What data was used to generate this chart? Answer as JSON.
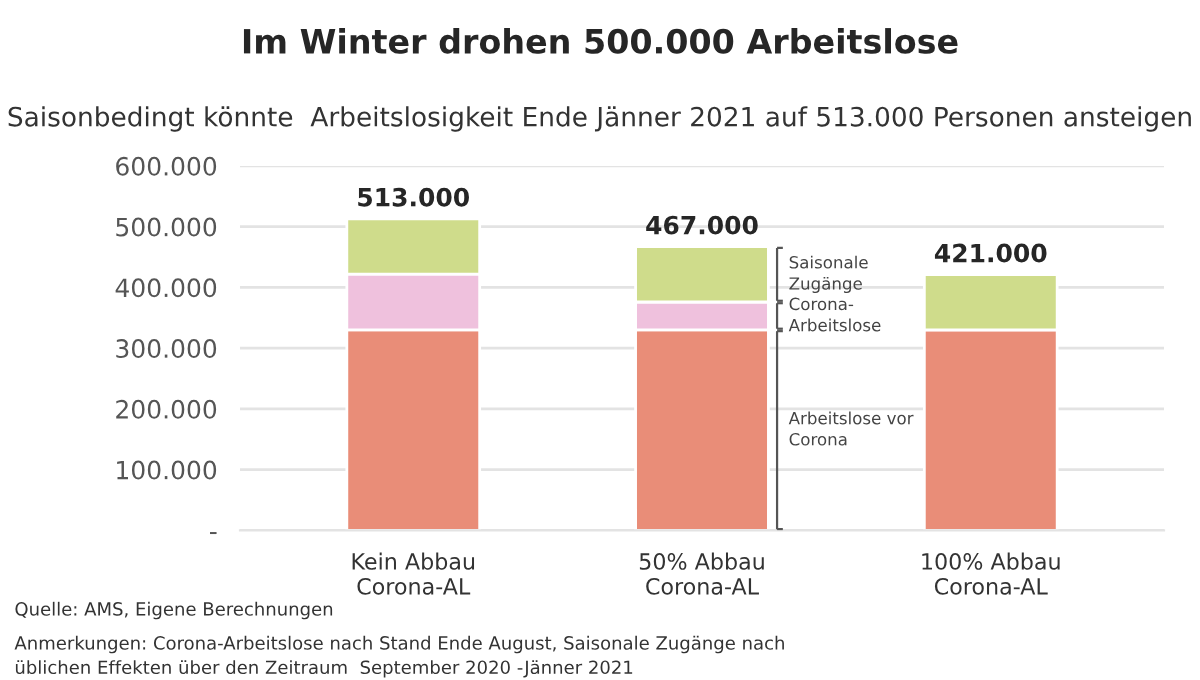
{
  "chart_data": {
    "type": "bar",
    "stacked": true,
    "title": "Im Winter drohen 500.000 Arbeitslose",
    "subtitle": "Saisonbedingt könnte  Arbeitslosigkeit Ende Jänner 2021 auf 513.000 Personen ansteigen",
    "categories": [
      "Kein Abbau\nCorona-AL",
      "50% Abbau\nCorona-AL",
      "100% Abbau\nCorona-AL"
    ],
    "series": [
      {
        "name": "Arbeitslose vor\nCorona",
        "color": "#e98d78",
        "values": [
          330000,
          330000,
          330000
        ]
      },
      {
        "name": "Corona-\nArbeitslose",
        "color": "#efc1dd",
        "values": [
          92000,
          46000,
          0
        ]
      },
      {
        "name": "Saisonale\nZugänge",
        "color": "#cfdc8b",
        "values": [
          91000,
          91000,
          91000
        ]
      }
    ],
    "totals": [
      "513.000",
      "467.000",
      "421.000"
    ],
    "ylim": [
      0,
      600000
    ],
    "yticks": [
      {
        "value": 0,
        "label": "-"
      },
      {
        "value": 100000,
        "label": "100.000"
      },
      {
        "value": 200000,
        "label": "200.000"
      },
      {
        "value": 300000,
        "label": "300.000"
      },
      {
        "value": 400000,
        "label": "400.000"
      },
      {
        "value": 500000,
        "label": "500.000"
      },
      {
        "value": 600000,
        "label": "600.000"
      }
    ],
    "grid": "y",
    "annotations": [
      "Quelle: AMS, Eigene Berechnungen",
      "Anmerkungen: Corona-Arbeitslose nach Stand Ende August, Saisonale Zugänge nach\nüblichen Effekten über den Zeitraum  September 2020 -Jänner 2021"
    ]
  }
}
